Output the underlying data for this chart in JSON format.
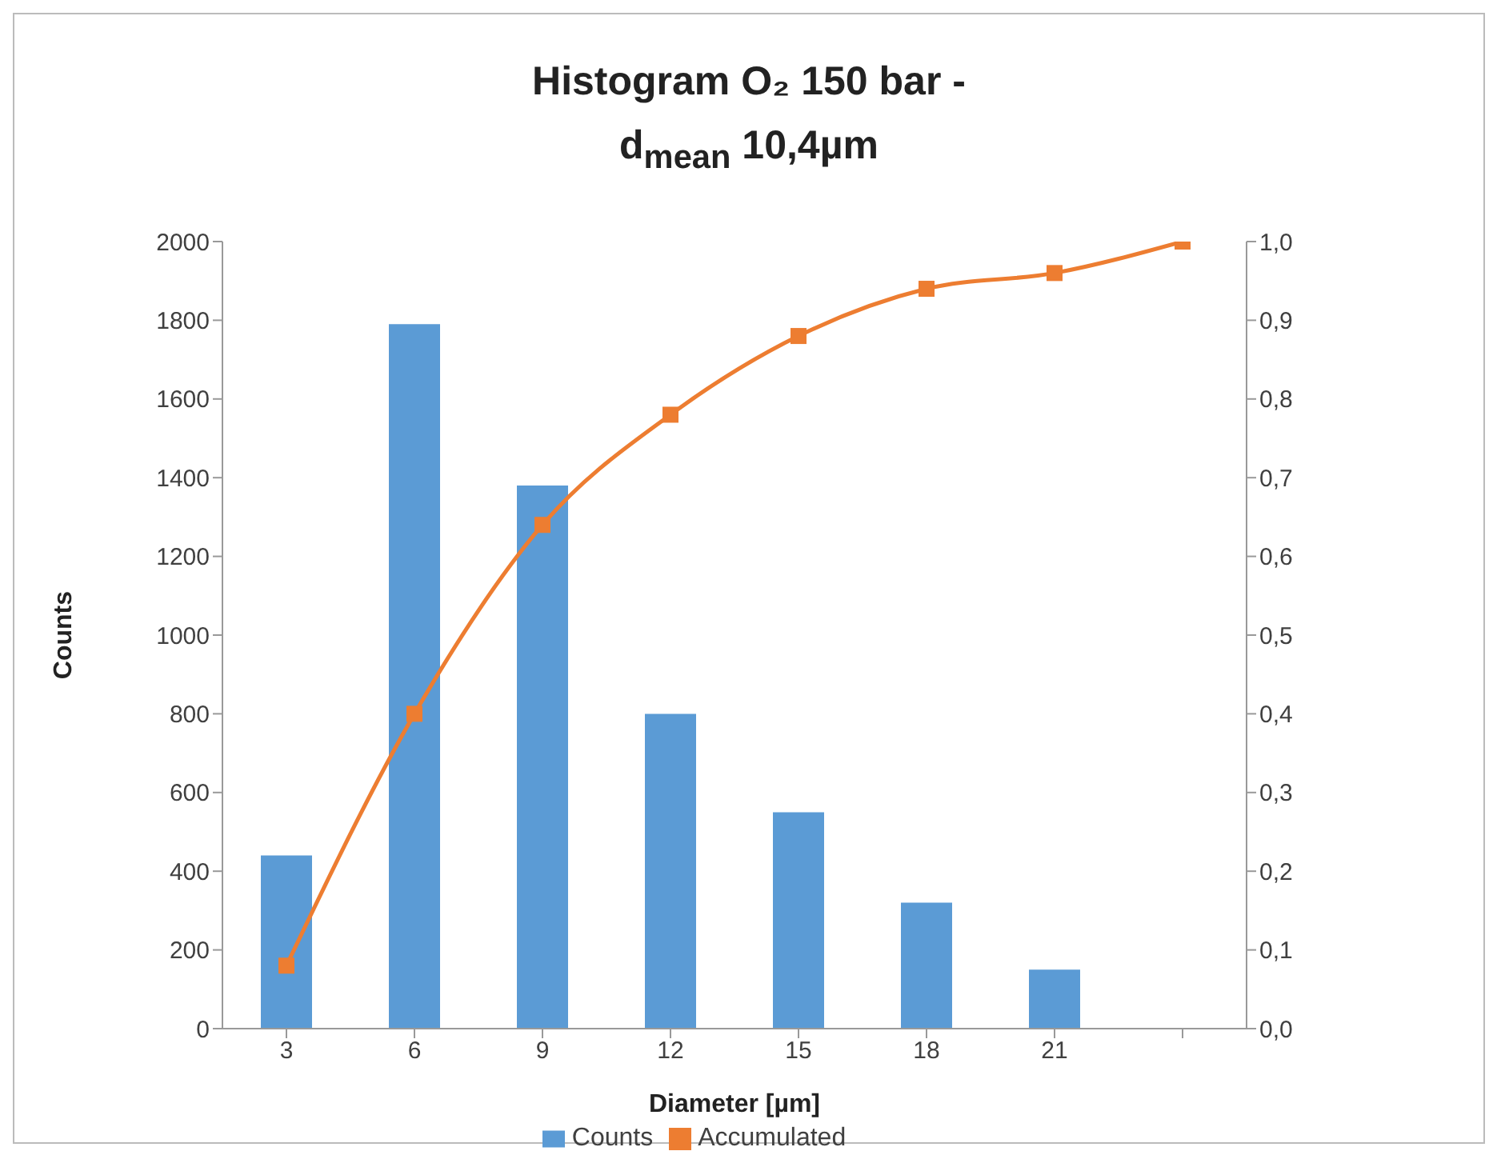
{
  "chart_data": {
    "type": "bar",
    "title": "Histogram O₂ 150 bar -\nd$_{mean}$ 10,4µm",
    "xlabel": "Diameter [µm]",
    "ylabel": "Counts",
    "categories": [
      "3",
      "6",
      "9",
      "12",
      "15",
      "18",
      "21",
      null
    ],
    "series": [
      {
        "name": "Counts",
        "color": "#5b9bd5",
        "values": [
          440,
          1790,
          1380,
          800,
          550,
          320,
          150,
          null
        ]
      },
      {
        "name": "Accumulated",
        "type": "line",
        "axis": "y2",
        "color": "#ed7d31",
        "values": [
          0.08,
          0.4,
          0.64,
          0.78,
          0.88,
          0.94,
          0.96,
          1.0
        ]
      }
    ],
    "ylim": [
      0,
      2000
    ],
    "yticks": [
      0,
      200,
      400,
      600,
      800,
      1000,
      1200,
      1400,
      1600,
      1800,
      2000
    ],
    "y2lim": [
      0,
      1
    ],
    "y2ticks": [
      {
        "value": 0,
        "label": "0,0"
      },
      {
        "value": 0.1,
        "label": "0,1"
      },
      {
        "value": 0.2,
        "label": "0,2"
      },
      {
        "value": 0.3,
        "label": "0,3"
      },
      {
        "value": 0.4,
        "label": "0,4"
      },
      {
        "value": 0.5,
        "label": "0,5"
      },
      {
        "value": 0.6,
        "label": "0,6"
      },
      {
        "value": 0.7,
        "label": "0,7"
      },
      {
        "value": 0.8,
        "label": "0,8"
      },
      {
        "value": 0.9,
        "label": "0,9"
      },
      {
        "value": 1,
        "label": "1,0"
      }
    ],
    "legend": "bottom",
    "marker": "square",
    "grid": false
  }
}
